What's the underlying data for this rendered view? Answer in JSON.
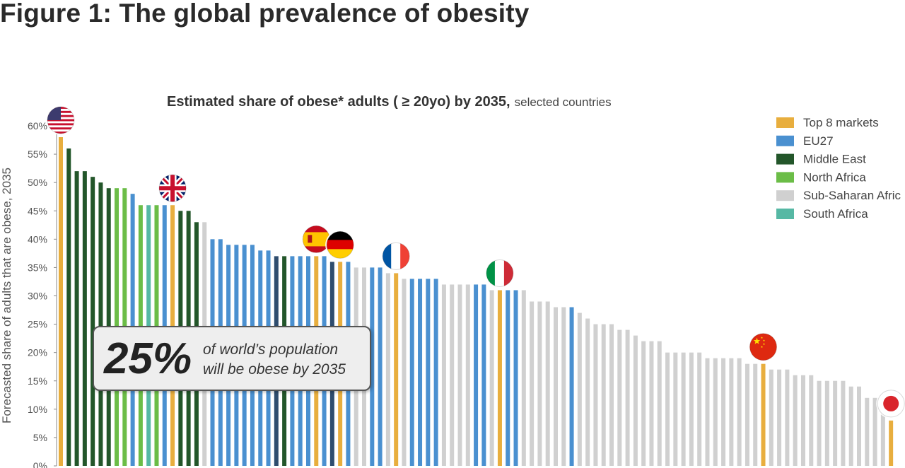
{
  "figure_title": "Figure 1: The global prevalence of obesity",
  "callout": {
    "percent": "25%",
    "line1": "of world’s population",
    "line2": "will be obese by 2035"
  },
  "colors": {
    "top8": "#e8ae3e",
    "eu27": "#4a90d0",
    "middle_east": "#23562a",
    "north_africa": "#6bbd47",
    "sub_saharan": "#d0d0d0",
    "south_africa": "#56b8a4",
    "dark_blue": "#2f4d6e"
  },
  "chart_data": {
    "type": "bar",
    "title": "Estimated share of obese* adults ( ≥ 20yo) by 2035,",
    "subtitle": "selected countries",
    "ylabel": "Forecasted share of adults that are obese, 2035",
    "xlabel": "",
    "ylim": [
      0,
      60
    ],
    "yticks": [
      "0%",
      "5%",
      "10%",
      "15%",
      "20%",
      "25%",
      "30%",
      "35%",
      "40%",
      "45%",
      "50%",
      "55%",
      "60%"
    ],
    "legend": [
      {
        "key": "top8",
        "label": "Top 8 markets"
      },
      {
        "key": "eu27",
        "label": "EU27"
      },
      {
        "key": "middle_east",
        "label": "Middle East"
      },
      {
        "key": "north_africa",
        "label": "North Africa"
      },
      {
        "key": "sub_saharan",
        "label": "Sub-Saharan Afric"
      },
      {
        "key": "south_africa",
        "label": "South Africa"
      }
    ],
    "values": [
      58,
      56,
      52,
      52,
      51,
      50,
      49,
      49,
      49,
      48,
      46,
      46,
      46,
      46,
      46,
      45,
      45,
      43,
      43,
      40,
      40,
      39,
      39,
      39,
      39,
      38,
      38,
      37,
      37,
      37,
      37,
      37,
      37,
      37,
      36,
      36,
      36,
      35,
      35,
      35,
      35,
      34,
      34,
      33,
      33,
      33,
      33,
      33,
      32,
      32,
      32,
      32,
      32,
      32,
      31,
      31,
      31,
      31,
      31,
      29,
      29,
      29,
      28,
      28,
      28,
      27,
      26,
      25,
      25,
      25,
      24,
      24,
      23,
      22,
      22,
      22,
      20,
      20,
      20,
      20,
      20,
      19,
      19,
      19,
      19,
      19,
      18,
      18,
      18,
      17,
      17,
      17,
      16,
      16,
      16,
      15,
      15,
      15,
      15,
      14,
      14,
      12,
      12,
      11,
      8
    ],
    "groups": [
      "top8",
      "middle_east",
      "middle_east",
      "middle_east",
      "middle_east",
      "middle_east",
      "middle_east",
      "north_africa",
      "north_africa",
      "eu27",
      "north_africa",
      "south_africa",
      "north_africa",
      "eu27",
      "top8",
      "middle_east",
      "middle_east",
      "middle_east",
      "sub_saharan",
      "eu27",
      "eu27",
      "eu27",
      "eu27",
      "eu27",
      "eu27",
      "eu27",
      "eu27",
      "dark_blue",
      "middle_east",
      "eu27",
      "eu27",
      "eu27",
      "top8",
      "eu27",
      "dark_blue",
      "top8",
      "eu27",
      "sub_saharan",
      "sub_saharan",
      "eu27",
      "eu27",
      "sub_saharan",
      "top8",
      "sub_saharan",
      "eu27",
      "eu27",
      "eu27",
      "eu27",
      "sub_saharan",
      "sub_saharan",
      "sub_saharan",
      "sub_saharan",
      "eu27",
      "eu27",
      "sub_saharan",
      "top8",
      "eu27",
      "eu27",
      "sub_saharan",
      "sub_saharan",
      "sub_saharan",
      "sub_saharan",
      "sub_saharan",
      "sub_saharan",
      "eu27",
      "sub_saharan",
      "sub_saharan",
      "sub_saharan",
      "sub_saharan",
      "sub_saharan",
      "sub_saharan",
      "sub_saharan",
      "sub_saharan",
      "sub_saharan",
      "sub_saharan",
      "sub_saharan",
      "sub_saharan",
      "sub_saharan",
      "sub_saharan",
      "sub_saharan",
      "sub_saharan",
      "sub_saharan",
      "sub_saharan",
      "sub_saharan",
      "sub_saharan",
      "sub_saharan",
      "sub_saharan",
      "sub_saharan",
      "top8",
      "sub_saharan",
      "sub_saharan",
      "sub_saharan",
      "sub_saharan",
      "sub_saharan",
      "sub_saharan",
      "sub_saharan",
      "sub_saharan",
      "sub_saharan",
      "sub_saharan",
      "sub_saharan",
      "sub_saharan",
      "sub_saharan",
      "sub_saharan",
      "sub_saharan",
      "top8"
    ],
    "flags": [
      {
        "name": "usa",
        "index": 0
      },
      {
        "name": "uk",
        "index": 14
      },
      {
        "name": "spain",
        "index": 32
      },
      {
        "name": "germany",
        "index": 35
      },
      {
        "name": "france",
        "index": 42
      },
      {
        "name": "italy",
        "index": 55
      },
      {
        "name": "china",
        "index": 88
      },
      {
        "name": "japan",
        "index": 104
      }
    ]
  }
}
